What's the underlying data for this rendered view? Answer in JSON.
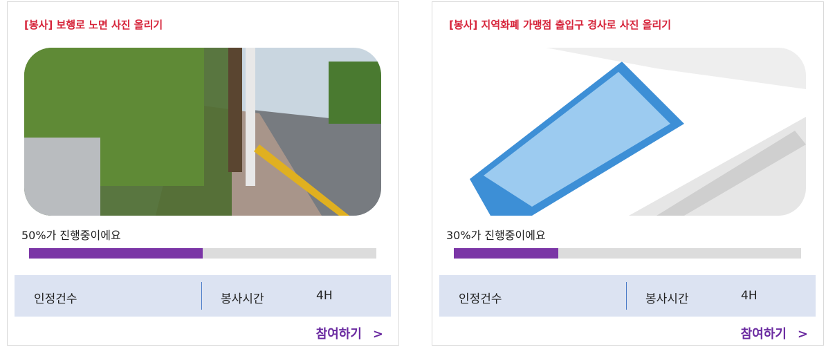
{
  "cards": [
    {
      "title": "[봉사] 보행로 노면 사진 올리기",
      "progress_label": "50%가 진행중이에요",
      "progress": 50,
      "stat_label_1": "인정건수",
      "stat_label_2": "봉사시간",
      "stat_value_2": "4H",
      "button": "참여하기",
      "button_arrow": ">"
    },
    {
      "title": "[봉사] 지역화폐 가맹점 출입구 경사로 사진 올리기",
      "progress_label": "30%가 진행중이에요",
      "progress": 30,
      "stat_label_1": "인정건수",
      "stat_label_2": "봉사시간",
      "stat_value_2": "4H",
      "button": "참여하기",
      "button_arrow": ">"
    }
  ]
}
